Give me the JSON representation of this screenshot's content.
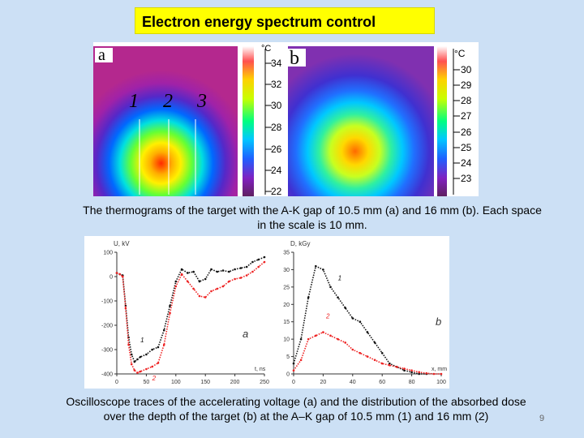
{
  "slide": {
    "title": "Electron energy spectrum control",
    "thermo_caption_line1": "The thermograms of the target with the A-K gap of 10.5 mm (a) and 16 mm (b). Each space",
    "thermo_caption_line2": "in the scale is 10 mm.",
    "osc_caption_line1": "Oscilloscope traces of the accelerating voltage (a) and the distribution of the absorbed dose",
    "osc_caption_line2": "over the depth of the target (b) at the A–K gap of 10.5 mm (1) and 16 mm (2)",
    "page_number": "9"
  },
  "thermogram_a": {
    "panel_label": "a",
    "unit": "°C",
    "scale_ticks": [
      "34",
      "32",
      "30",
      "28",
      "26",
      "24",
      "22"
    ],
    "line_labels": [
      "1",
      "2",
      "3"
    ]
  },
  "thermogram_b": {
    "panel_label": "b",
    "unit": "°C",
    "scale_ticks": [
      "30",
      "29",
      "28",
      "27",
      "26",
      "25",
      "24",
      "23"
    ]
  },
  "chart_data": [
    {
      "type": "line",
      "panel_label": "a",
      "ylabel": "U, kV",
      "xlabel": "t, ns",
      "xlim": [
        0,
        250
      ],
      "ylim": [
        -400,
        100
      ],
      "xticks": [
        "0",
        "50",
        "100",
        "150",
        "200",
        "250"
      ],
      "yticks": [
        "100",
        "0",
        "-100",
        "-200",
        "-300",
        "-400"
      ],
      "series": [
        {
          "name": "1",
          "color": "#111111",
          "x": [
            0,
            5,
            10,
            15,
            20,
            25,
            30,
            35,
            40,
            50,
            60,
            70,
            80,
            90,
            100,
            110,
            120,
            130,
            140,
            150,
            160,
            170,
            180,
            190,
            200,
            210,
            220,
            230,
            240,
            250
          ],
          "y": [
            15,
            10,
            5,
            -120,
            -250,
            -320,
            -350,
            -340,
            -330,
            -320,
            -300,
            -290,
            -220,
            -120,
            -20,
            30,
            15,
            20,
            -20,
            -10,
            30,
            20,
            25,
            20,
            30,
            35,
            40,
            60,
            70,
            80
          ]
        },
        {
          "name": "2",
          "color": "#ee2222",
          "x": [
            0,
            5,
            10,
            15,
            20,
            25,
            30,
            35,
            40,
            50,
            60,
            70,
            80,
            90,
            100,
            110,
            120,
            130,
            140,
            150,
            160,
            170,
            180,
            190,
            200,
            210,
            220,
            230,
            240,
            250
          ],
          "y": [
            15,
            10,
            0,
            -130,
            -280,
            -360,
            -385,
            -395,
            -390,
            -380,
            -370,
            -355,
            -280,
            -150,
            -40,
            10,
            -20,
            -50,
            -80,
            -85,
            -60,
            -50,
            -40,
            -20,
            -10,
            -5,
            5,
            20,
            40,
            60
          ]
        }
      ]
    },
    {
      "type": "line",
      "panel_label": "b",
      "ylabel": "D, kGy",
      "xlabel": "x, mm",
      "xlim": [
        0,
        100
      ],
      "ylim": [
        0,
        35
      ],
      "xticks": [
        "0",
        "20",
        "40",
        "60",
        "80",
        "100"
      ],
      "yticks": [
        "0",
        "5",
        "10",
        "15",
        "20",
        "25",
        "30",
        "35"
      ],
      "series": [
        {
          "name": "1",
          "color": "#111111",
          "x": [
            0,
            5,
            10,
            15,
            20,
            25,
            30,
            35,
            40,
            45,
            50,
            55,
            60,
            65,
            70,
            75,
            80,
            85,
            90
          ],
          "y": [
            3,
            10,
            22,
            31,
            30,
            25,
            22,
            19,
            16,
            15,
            12,
            9,
            6,
            3,
            2,
            1,
            0.5,
            0,
            0
          ]
        },
        {
          "name": "2",
          "color": "#ee2222",
          "x": [
            0,
            5,
            10,
            15,
            20,
            25,
            30,
            35,
            40,
            45,
            50,
            55,
            60,
            65,
            70,
            75,
            80,
            85,
            90,
            95,
            100
          ],
          "y": [
            1,
            4,
            10,
            11,
            12,
            11,
            10,
            9,
            7,
            6,
            5,
            4,
            3,
            2.5,
            2,
            1.5,
            1,
            0.5,
            0.2,
            0,
            0
          ]
        }
      ]
    }
  ]
}
